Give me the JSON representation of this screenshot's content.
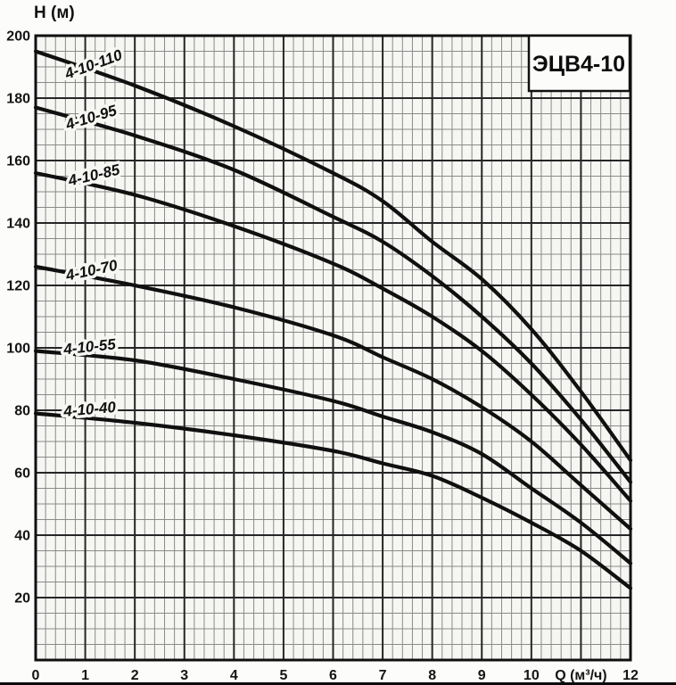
{
  "chart_data": {
    "type": "line",
    "title": "ЭЦВ4-10",
    "xlabel": "Q (м³/ч)",
    "ylabel": "Н (м)",
    "xlim": [
      0,
      12
    ],
    "ylim": [
      0,
      200
    ],
    "grid": true,
    "x_major_step": 1,
    "x_minor_step": 0.2,
    "y_major_step": 20,
    "y_minor_step": 5,
    "x_ticks": [
      {
        "value": 0,
        "label": "0"
      },
      {
        "value": 1,
        "label": "1"
      },
      {
        "value": 2,
        "label": "2"
      },
      {
        "value": 3,
        "label": "3"
      },
      {
        "value": 4,
        "label": "4"
      },
      {
        "value": 5,
        "label": "5"
      },
      {
        "value": 6,
        "label": "6"
      },
      {
        "value": 7,
        "label": "7"
      },
      {
        "value": 8,
        "label": "8"
      },
      {
        "value": 9,
        "label": "9"
      },
      {
        "value": 10,
        "label": "10"
      },
      {
        "value": 11,
        "label": "Q (м³/ч)"
      },
      {
        "value": 12,
        "label": "12"
      }
    ],
    "y_ticks": [
      {
        "value": 200,
        "label": "200"
      },
      {
        "value": 180,
        "label": "180"
      },
      {
        "value": 160,
        "label": "160"
      },
      {
        "value": 140,
        "label": "140"
      },
      {
        "value": 120,
        "label": "120"
      },
      {
        "value": 100,
        "label": "100"
      },
      {
        "value": 80,
        "label": "80"
      },
      {
        "value": 60,
        "label": "60"
      },
      {
        "value": 40,
        "label": "40"
      },
      {
        "value": 20,
        "label": "20"
      }
    ],
    "series": [
      {
        "name": "4-10-110",
        "points": [
          [
            0,
            195
          ],
          [
            2,
            184
          ],
          [
            4,
            171
          ],
          [
            6,
            156
          ],
          [
            7,
            147
          ],
          [
            8,
            134
          ],
          [
            9,
            122
          ],
          [
            10,
            106
          ],
          [
            11,
            86
          ],
          [
            12,
            64
          ]
        ],
        "label": {
          "q": 1.2,
          "h": 191,
          "angle": -20
        }
      },
      {
        "name": "4-10-95",
        "points": [
          [
            0,
            177
          ],
          [
            2,
            168
          ],
          [
            4,
            157
          ],
          [
            6,
            142
          ],
          [
            7,
            134
          ],
          [
            8,
            123
          ],
          [
            9,
            110
          ],
          [
            10,
            95
          ],
          [
            11,
            77
          ],
          [
            12,
            57
          ]
        ],
        "label": {
          "q": 1.15,
          "h": 174,
          "angle": -17
        }
      },
      {
        "name": "4-10-85",
        "points": [
          [
            0,
            156
          ],
          [
            2,
            149
          ],
          [
            4,
            139
          ],
          [
            6,
            127
          ],
          [
            7,
            119
          ],
          [
            8,
            110
          ],
          [
            9,
            99
          ],
          [
            10,
            85
          ],
          [
            11,
            69
          ],
          [
            12,
            51
          ]
        ],
        "label": {
          "q": 1.2,
          "h": 155.5,
          "angle": -13
        }
      },
      {
        "name": "4-10-70",
        "points": [
          [
            0,
            126
          ],
          [
            2,
            120
          ],
          [
            4,
            113
          ],
          [
            6,
            104
          ],
          [
            7,
            97
          ],
          [
            8,
            90
          ],
          [
            9,
            81
          ],
          [
            10,
            70
          ],
          [
            11,
            56
          ],
          [
            12,
            42
          ]
        ],
        "label": {
          "q": 1.15,
          "h": 125,
          "angle": -12
        }
      },
      {
        "name": "4-10-55",
        "points": [
          [
            0,
            99
          ],
          [
            2,
            96
          ],
          [
            4,
            90
          ],
          [
            6,
            83
          ],
          [
            7,
            78
          ],
          [
            8,
            73
          ],
          [
            9,
            66
          ],
          [
            10,
            55
          ],
          [
            11,
            44
          ],
          [
            12,
            31
          ]
        ],
        "label": {
          "q": 1.1,
          "h": 100.5,
          "angle": -6
        }
      },
      {
        "name": "4-10-40",
        "points": [
          [
            0,
            79
          ],
          [
            2,
            76
          ],
          [
            4,
            72
          ],
          [
            6,
            67
          ],
          [
            7,
            63
          ],
          [
            8,
            59
          ],
          [
            9,
            52
          ],
          [
            10,
            44
          ],
          [
            11,
            35
          ],
          [
            12,
            23
          ]
        ],
        "label": {
          "q": 1.1,
          "h": 80.5,
          "angle": -5
        }
      }
    ],
    "colors": {
      "curve": "#101010",
      "grid_major": "#262626",
      "grid_minor": "#8a8a8a",
      "border": "#111111",
      "plot_bg": "#f6f6f3",
      "page_bg": "#fcfcfa",
      "scan_edge": "#0a0a0a"
    }
  }
}
